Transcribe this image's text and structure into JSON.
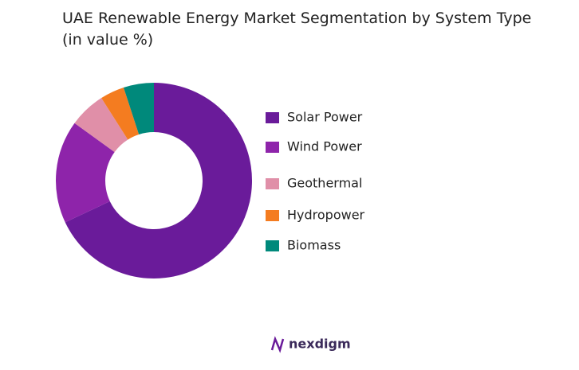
{
  "chart_data": {
    "type": "donut",
    "title": "UAE Renewable Energy Market Segmentation by System Type (in value %)",
    "categories": [
      "Solar Power",
      "Wind Power",
      "Geothermal",
      "Hydropower",
      "Biomass"
    ],
    "values": [
      68,
      17,
      6,
      4,
      5
    ],
    "colors": [
      "#6a1b9a",
      "#8e24aa",
      "#e08fa8",
      "#f47c20",
      "#00897b"
    ]
  },
  "logo": {
    "text": "nexdigm"
  }
}
